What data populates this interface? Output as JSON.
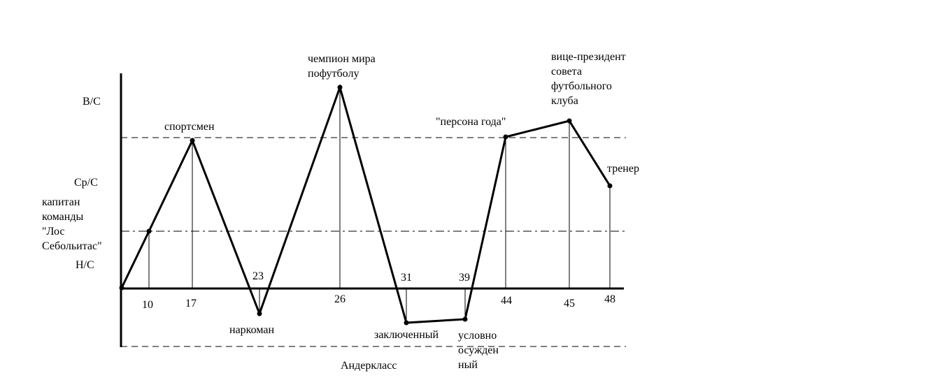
{
  "chart_data": {
    "type": "line",
    "title": "",
    "y_levels": [
      {
        "key": "vs",
        "label": "В/С"
      },
      {
        "key": "ss",
        "label": "Ср/С"
      },
      {
        "key": "ns",
        "label": "Н/С"
      }
    ],
    "x_label": "Андеркласс",
    "points": [
      {
        "age": null,
        "tick": "",
        "event_lines": []
      },
      {
        "age": 10,
        "tick": "10",
        "event_lines": [
          "капитан",
          "команды",
          "\"Лос",
          "Себольитас\""
        ]
      },
      {
        "age": 17,
        "tick": "17",
        "event_lines": [
          "спортсмен"
        ]
      },
      {
        "age": 23,
        "tick": "23",
        "event_lines": [
          "наркоман"
        ]
      },
      {
        "age": 26,
        "tick": "26",
        "event_lines": [
          "чемпион мира",
          "пофутболу"
        ]
      },
      {
        "age": 31,
        "tick": "31",
        "event_lines": [
          "заключенный"
        ]
      },
      {
        "age": 39,
        "tick": "39",
        "event_lines": [
          "условно",
          "осужден",
          "ный"
        ]
      },
      {
        "age": 44,
        "tick": "44",
        "event_lines": [
          "\"персона года\""
        ]
      },
      {
        "age": 45,
        "tick": "45",
        "event_lines": [
          "вице-президент",
          "совета",
          "футбольного",
          "клуба"
        ]
      },
      {
        "age": 48,
        "tick": "48",
        "event_lines": [
          "тренер"
        ]
      }
    ]
  }
}
